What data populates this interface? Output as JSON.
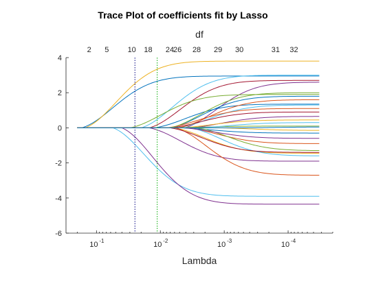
{
  "chart_data": {
    "type": "line",
    "title": "Trace Plot of coefficients fit by Lasso",
    "xlabel": "Lambda",
    "ylabel": "",
    "top_axis_label": "df",
    "x_scale": "log",
    "x_reversed": true,
    "xlim": [
      0.3,
      2e-05
    ],
    "ylim": [
      -6,
      4
    ],
    "grid": false,
    "y_ticks": [
      -6,
      -4,
      -2,
      0,
      2,
      4
    ],
    "x_tick_labels": [
      {
        "value": 0.1,
        "base": "10",
        "exp": "-1"
      },
      {
        "value": 0.01,
        "base": "10",
        "exp": "-2"
      },
      {
        "value": 0.001,
        "base": "10",
        "exp": "-3"
      },
      {
        "value": 0.0001,
        "base": "10",
        "exp": "-4"
      }
    ],
    "df_labels": [
      {
        "lambda": 0.13,
        "text": "2"
      },
      {
        "lambda": 0.069,
        "text": "5"
      },
      {
        "lambda": 0.028,
        "text": "10"
      },
      {
        "lambda": 0.0155,
        "text": "18"
      },
      {
        "lambda": 0.0071,
        "text": "24"
      },
      {
        "lambda": 0.0054,
        "text": "26"
      },
      {
        "lambda": 0.0027,
        "text": "28"
      },
      {
        "lambda": 0.00125,
        "text": "29"
      },
      {
        "lambda": 0.00058,
        "text": "30"
      },
      {
        "lambda": 0.000157,
        "text": "31"
      },
      {
        "lambda": 8.1e-05,
        "text": "32"
      }
    ],
    "vlines": [
      {
        "lambda": 0.025,
        "style": "dotted",
        "color": "#000080"
      },
      {
        "lambda": 0.0112,
        "style": "dotted",
        "color": "#00aa00"
      }
    ],
    "coefficients": [
      {
        "start": 0.17,
        "final": 2.95,
        "color": "#0072BD"
      },
      {
        "start": 0.15,
        "final": 3.8,
        "color": "#EDB120"
      },
      {
        "start": 0.02,
        "final": 3.0,
        "color": "#4DBEEE"
      },
      {
        "start": 0.055,
        "final": -3.9,
        "color": "#4DBEEE"
      },
      {
        "start": 0.04,
        "final": -4.35,
        "color": "#7E2F8E"
      },
      {
        "start": 0.015,
        "final": 2.7,
        "color": "#A2142F"
      },
      {
        "start": 0.0042,
        "final": 2.6,
        "color": "#7E2F8E"
      },
      {
        "start": 0.03,
        "final": 1.9,
        "color": "#77AC30"
      },
      {
        "start": 0.0071,
        "final": 1.8,
        "color": "#0072BD"
      },
      {
        "start": 0.0054,
        "final": 1.3,
        "color": "#4DBEEE"
      },
      {
        "start": 0.008,
        "final": 1.1,
        "color": "#D95319"
      },
      {
        "start": 0.0071,
        "final": 0.9,
        "color": "#A2142F"
      },
      {
        "start": 0.0035,
        "final": 0.65,
        "color": "#7E2F8E"
      },
      {
        "start": 0.005,
        "final": 0.45,
        "color": "#EDB120"
      },
      {
        "start": 0.0071,
        "final": 0.1,
        "color": "#77AC30"
      },
      {
        "start": 0.005,
        "final": -0.3,
        "color": "#0072BD"
      },
      {
        "start": 0.004,
        "final": -0.9,
        "color": "#D95319"
      },
      {
        "start": 0.0027,
        "final": -1.3,
        "color": "#77AC30"
      },
      {
        "start": 0.0062,
        "final": -1.45,
        "color": "#EDB120"
      },
      {
        "start": 0.0035,
        "final": -1.6,
        "color": "#4DBEEE"
      },
      {
        "start": 0.015,
        "final": -1.9,
        "color": "#7E2F8E"
      },
      {
        "start": 0.0058,
        "final": -2.7,
        "color": "#D95319"
      },
      {
        "start": 0.0125,
        "final": 1.35,
        "color": "#0072BD"
      },
      {
        "start": 0.0071,
        "final": 2.0,
        "color": "#77AC30"
      },
      {
        "start": 0.0071,
        "final": -1.4,
        "color": "#A2142F"
      },
      {
        "start": 0.0054,
        "final": 1.6,
        "color": "#D95319"
      },
      {
        "start": 0.0045,
        "final": -0.6,
        "color": "#7E2F8E"
      },
      {
        "start": 0.0027,
        "final": 0.3,
        "color": "#4DBEEE"
      },
      {
        "start": 0.00125,
        "final": -0.15,
        "color": "#EDB120"
      },
      {
        "start": 0.00058,
        "final": 0.05,
        "color": "#0072BD"
      }
    ]
  }
}
